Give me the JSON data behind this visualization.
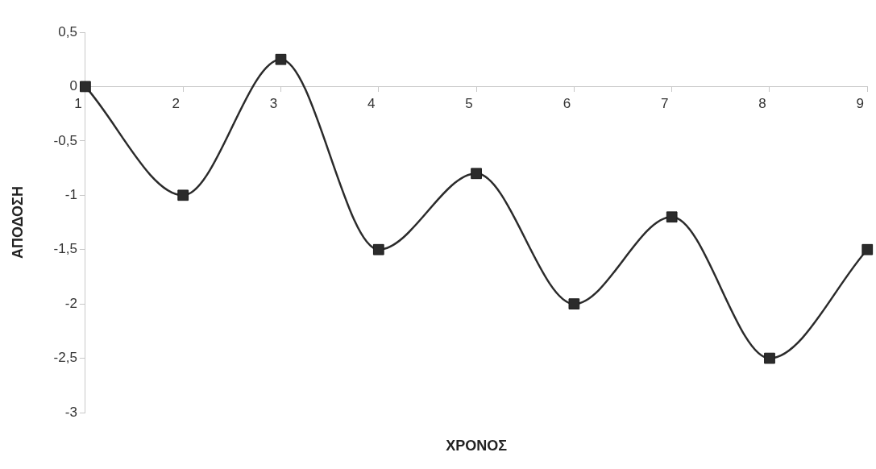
{
  "chart_data": {
    "type": "line",
    "xlabel": "ΧΡΟΝΟΣ",
    "ylabel": "ΑΠΟΔΟΣΗ",
    "categories": [
      "1",
      "2",
      "3",
      "4",
      "5",
      "6",
      "7",
      "8",
      "9"
    ],
    "series": [
      {
        "color": "#2b2b2b",
        "values": [
          0,
          -1,
          0.25,
          -1.5,
          -0.8,
          -2,
          -1.2,
          -2.5,
          -1.5
        ]
      }
    ],
    "ylim": [
      -3,
      0.5
    ],
    "yticks": [
      {
        "value": -3,
        "label": "-3"
      },
      {
        "value": -2.5,
        "label": "-2,5"
      },
      {
        "value": -2,
        "label": "-2"
      },
      {
        "value": -1.5,
        "label": "-1,5"
      },
      {
        "value": -1,
        "label": "-1"
      },
      {
        "value": -0.5,
        "label": "-0,5"
      },
      {
        "value": 0,
        "label": "0"
      },
      {
        "value": 0.5,
        "label": "0,5"
      }
    ],
    "grid": false,
    "legend": false,
    "marker": "square",
    "line_style": "solid"
  }
}
